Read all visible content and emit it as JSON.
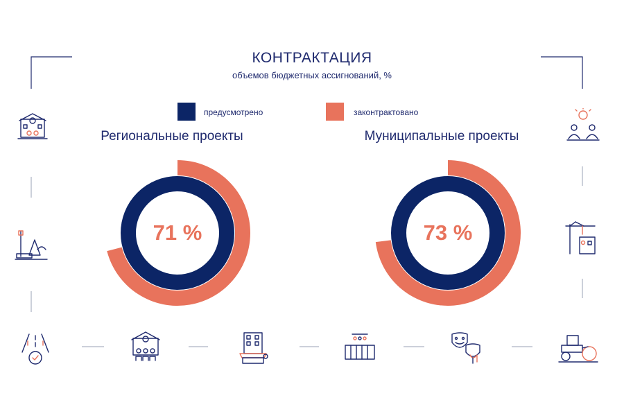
{
  "header": {
    "title": "КОНТРАКТАЦИЯ",
    "subtitle": "объемов бюджетных ассигнований, %"
  },
  "legend": {
    "planned": "предусмотрено",
    "contracted": "законтрактовано"
  },
  "colors": {
    "navy": "#0c2566",
    "coral": "#e8735c"
  },
  "chart_data": [
    {
      "type": "pie",
      "title": "Региональные проекты",
      "series": [
        {
          "name": "предусмотрено",
          "value": 100
        },
        {
          "name": "законтрактовано",
          "value": 71
        }
      ],
      "label": "71 %"
    },
    {
      "type": "pie",
      "title": "Муниципальные проекты",
      "series": [
        {
          "name": "предусмотрено",
          "value": 100
        },
        {
          "name": "законтрактовано",
          "value": 73
        }
      ],
      "label": "73 %"
    }
  ],
  "icons": [
    "school-icon",
    "park-icon",
    "road-icon",
    "kindergarten-icon",
    "shop-building-icon",
    "crib-icon",
    "theater-masks-icon",
    "road-roller-icon",
    "crane-building-icon",
    "idea-people-icon"
  ]
}
